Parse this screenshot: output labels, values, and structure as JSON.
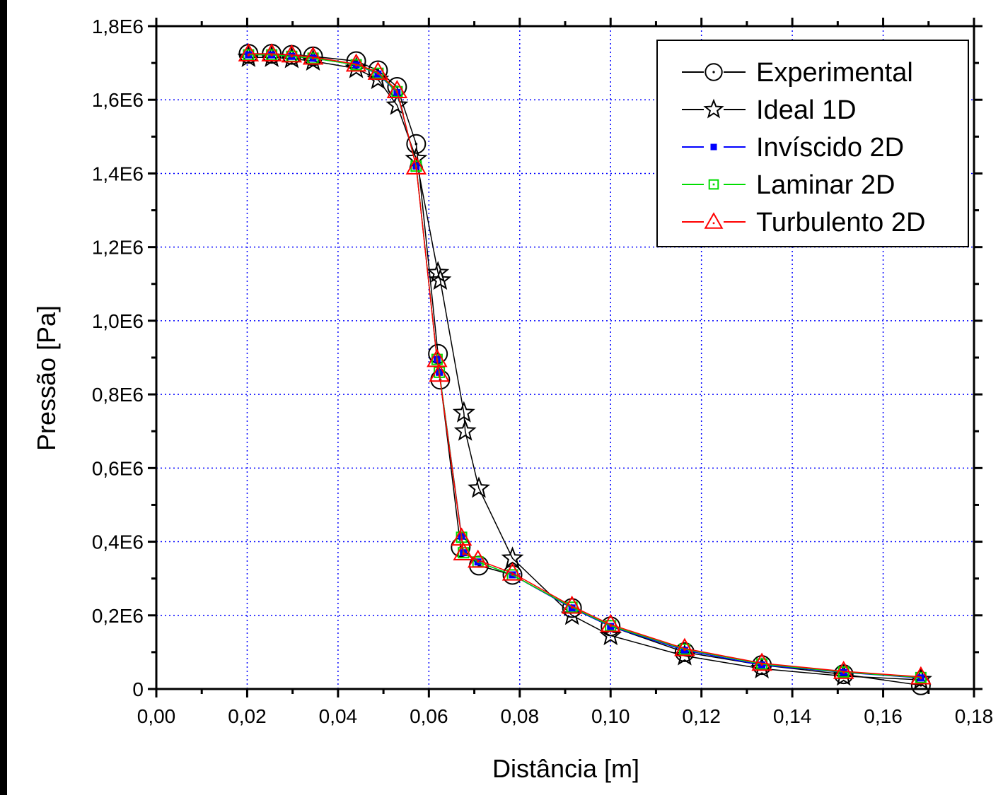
{
  "chart_data": {
    "type": "line",
    "title": "",
    "xlabel": "Distância [m]",
    "ylabel": "Pressão [Pa]",
    "xlim": [
      0,
      0.18
    ],
    "ylim": [
      0,
      1800000
    ],
    "x_ticks": [
      "0,00",
      "0,02",
      "0,04",
      "0,06",
      "0,08",
      "0,10",
      "0,12",
      "0,14",
      "0,16",
      "0,18"
    ],
    "y_ticks": [
      "0",
      "0,2E6",
      "0,4E6",
      "0,6E6",
      "0,8E6",
      "1,0E6",
      "1,2E6",
      "1,4E6",
      "1,6E6",
      "1,8E6"
    ],
    "grid": true,
    "legend_position": "top-right",
    "series": [
      {
        "name": "Experimental",
        "color": "#000000",
        "marker": "circle",
        "x": [
          0.0203,
          0.0254,
          0.0298,
          0.0345,
          0.044,
          0.0488,
          0.053,
          0.0572,
          0.062,
          0.0625,
          0.067,
          0.071,
          0.0784,
          0.0915,
          0.1,
          0.1163,
          0.1333,
          0.1513,
          0.1683
        ],
        "y": [
          1725000,
          1725000,
          1722000,
          1718000,
          1705000,
          1680000,
          1635000,
          1480000,
          910000,
          840000,
          385000,
          335000,
          310000,
          220000,
          170000,
          100000,
          65000,
          40000,
          10000
        ]
      },
      {
        "name": "Ideal 1D",
        "color": "#000000",
        "marker": "star",
        "x": [
          0.0203,
          0.0254,
          0.0298,
          0.0345,
          0.044,
          0.0488,
          0.053,
          0.0572,
          0.062,
          0.0625,
          0.0677,
          0.068,
          0.071,
          0.0784,
          0.0915,
          0.1,
          0.1163,
          0.1333,
          0.1513,
          0.1683
        ],
        "y": [
          1715000,
          1715000,
          1712000,
          1705000,
          1685000,
          1655000,
          1585000,
          1440000,
          1130000,
          1110000,
          750000,
          700000,
          545000,
          355000,
          200000,
          145000,
          90000,
          55000,
          35000,
          25000
        ]
      },
      {
        "name": "Invíscido 2D",
        "color": "#0000FF",
        "marker": "filled-square",
        "x": [
          0.0203,
          0.0254,
          0.0298,
          0.0345,
          0.044,
          0.0488,
          0.053,
          0.0572,
          0.0618,
          0.0623,
          0.0672,
          0.0676,
          0.0708,
          0.0784,
          0.0915,
          0.1,
          0.1163,
          0.1333,
          0.1513,
          0.1683
        ],
        "y": [
          1722000,
          1722000,
          1718000,
          1713000,
          1695000,
          1670000,
          1620000,
          1420000,
          895000,
          860000,
          415000,
          370000,
          345000,
          310000,
          220000,
          170000,
          105000,
          65000,
          45000,
          30000
        ]
      },
      {
        "name": "Laminar 2D",
        "color": "#00DD00",
        "marker": "square",
        "x": [
          0.0203,
          0.0254,
          0.0298,
          0.0345,
          0.044,
          0.0488,
          0.053,
          0.0572,
          0.0618,
          0.0623,
          0.0672,
          0.0676,
          0.0708,
          0.0784,
          0.0915,
          0.1,
          0.1163,
          0.1333,
          0.1513,
          0.1683
        ],
        "y": [
          1722000,
          1722000,
          1718000,
          1713000,
          1695000,
          1672000,
          1622000,
          1420000,
          895000,
          860000,
          412000,
          370000,
          345000,
          310000,
          222000,
          172000,
          108000,
          68000,
          46000,
          31000
        ]
      },
      {
        "name": "Turbulento 2D",
        "color": "#FF0000",
        "marker": "triangle",
        "x": [
          0.0203,
          0.0254,
          0.0298,
          0.0345,
          0.044,
          0.0488,
          0.053,
          0.0572,
          0.0618,
          0.0623,
          0.0672,
          0.0676,
          0.0708,
          0.0784,
          0.0915,
          0.1,
          0.1163,
          0.1333,
          0.1513,
          0.1683
        ],
        "y": [
          1725000,
          1725000,
          1722000,
          1716000,
          1697000,
          1675000,
          1625000,
          1418000,
          895000,
          855000,
          410000,
          370000,
          350000,
          315000,
          225000,
          175000,
          110000,
          70000,
          48000,
          33000
        ]
      }
    ]
  }
}
